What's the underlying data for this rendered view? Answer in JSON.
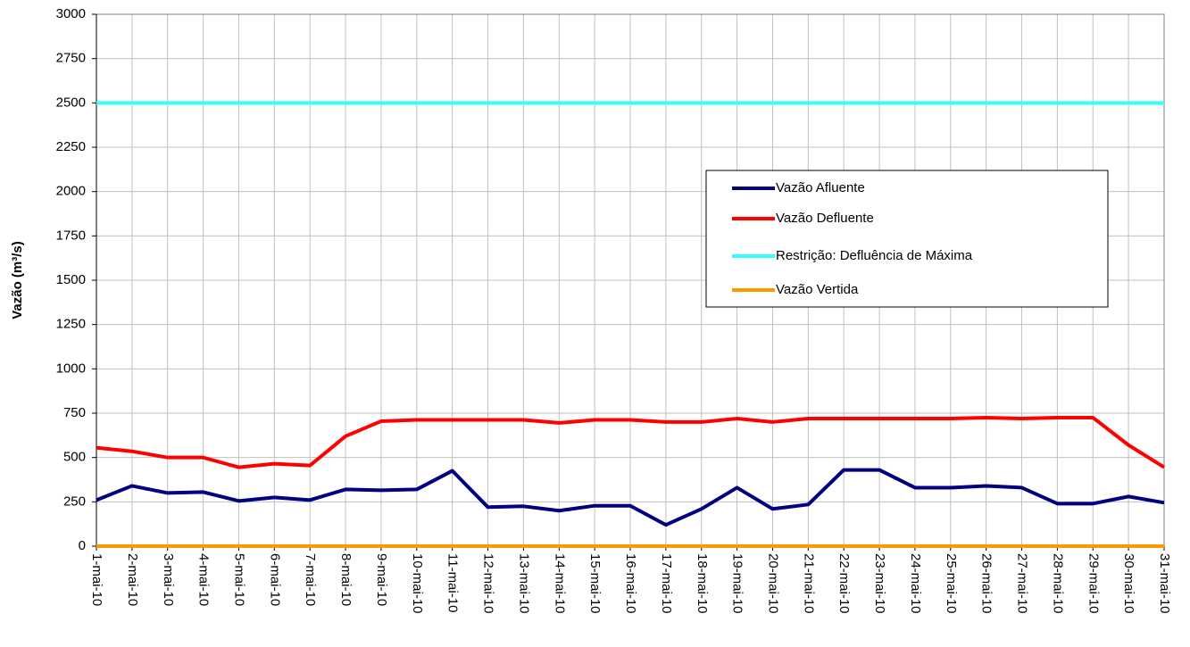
{
  "chart_data": {
    "type": "line",
    "y_label": "Vazão (m³/s)",
    "categories": [
      "1-mai-10",
      "2-mai-10",
      "3-mai-10",
      "4-mai-10",
      "5-mai-10",
      "6-mai-10",
      "7-mai-10",
      "8-mai-10",
      "9-mai-10",
      "10-mai-10",
      "11-mai-10",
      "12-mai-10",
      "13-mai-10",
      "14-mai-10",
      "15-mai-10",
      "16-mai-10",
      "17-mai-10",
      "18-mai-10",
      "19-mai-10",
      "20-mai-10",
      "21-mai-10",
      "22-mai-10",
      "23-mai-10",
      "24-mai-10",
      "25-mai-10",
      "26-mai-10",
      "27-mai-10",
      "28-mai-10",
      "29-mai-10",
      "30-mai-10",
      "31-mai-10"
    ],
    "series": [
      {
        "name": "Vazão Afluente",
        "color": "#000080",
        "values": [
          260,
          340,
          300,
          305,
          255,
          275,
          260,
          320,
          315,
          320,
          425,
          220,
          225,
          200,
          228,
          228,
          120,
          210,
          330,
          210,
          235,
          430,
          430,
          330,
          330,
          340,
          330,
          240,
          240,
          280,
          245
        ]
      },
      {
        "name": "Vazão Defluente",
        "color": "#ff0000",
        "values": [
          555,
          535,
          500,
          500,
          445,
          465,
          455,
          620,
          705,
          712,
          712,
          712,
          712,
          695,
          712,
          712,
          700,
          700,
          720,
          700,
          720,
          720,
          720,
          720,
          720,
          725,
          720,
          725,
          725,
          570,
          445
        ]
      },
      {
        "name": "Restrição: Defluência de Máxima",
        "color": "#33ffff",
        "values": [
          2500,
          2500,
          2500,
          2500,
          2500,
          2500,
          2500,
          2500,
          2500,
          2500,
          2500,
          2500,
          2500,
          2500,
          2500,
          2500,
          2500,
          2500,
          2500,
          2500,
          2500,
          2500,
          2500,
          2500,
          2500,
          2500,
          2500,
          2500,
          2500,
          2500,
          2500
        ]
      },
      {
        "name": "Vazão Vertida",
        "color": "#ff9900",
        "values": [
          0,
          0,
          0,
          0,
          0,
          0,
          0,
          0,
          0,
          0,
          0,
          0,
          0,
          0,
          0,
          0,
          0,
          0,
          0,
          0,
          0,
          0,
          0,
          0,
          0,
          0,
          0,
          0,
          0,
          0,
          0
        ]
      }
    ],
    "ylim": [
      0,
      3000
    ],
    "yticks": [
      0,
      250,
      500,
      750,
      1000,
      1250,
      1500,
      1750,
      2000,
      2250,
      2500,
      2750,
      3000
    ],
    "grid": true
  }
}
